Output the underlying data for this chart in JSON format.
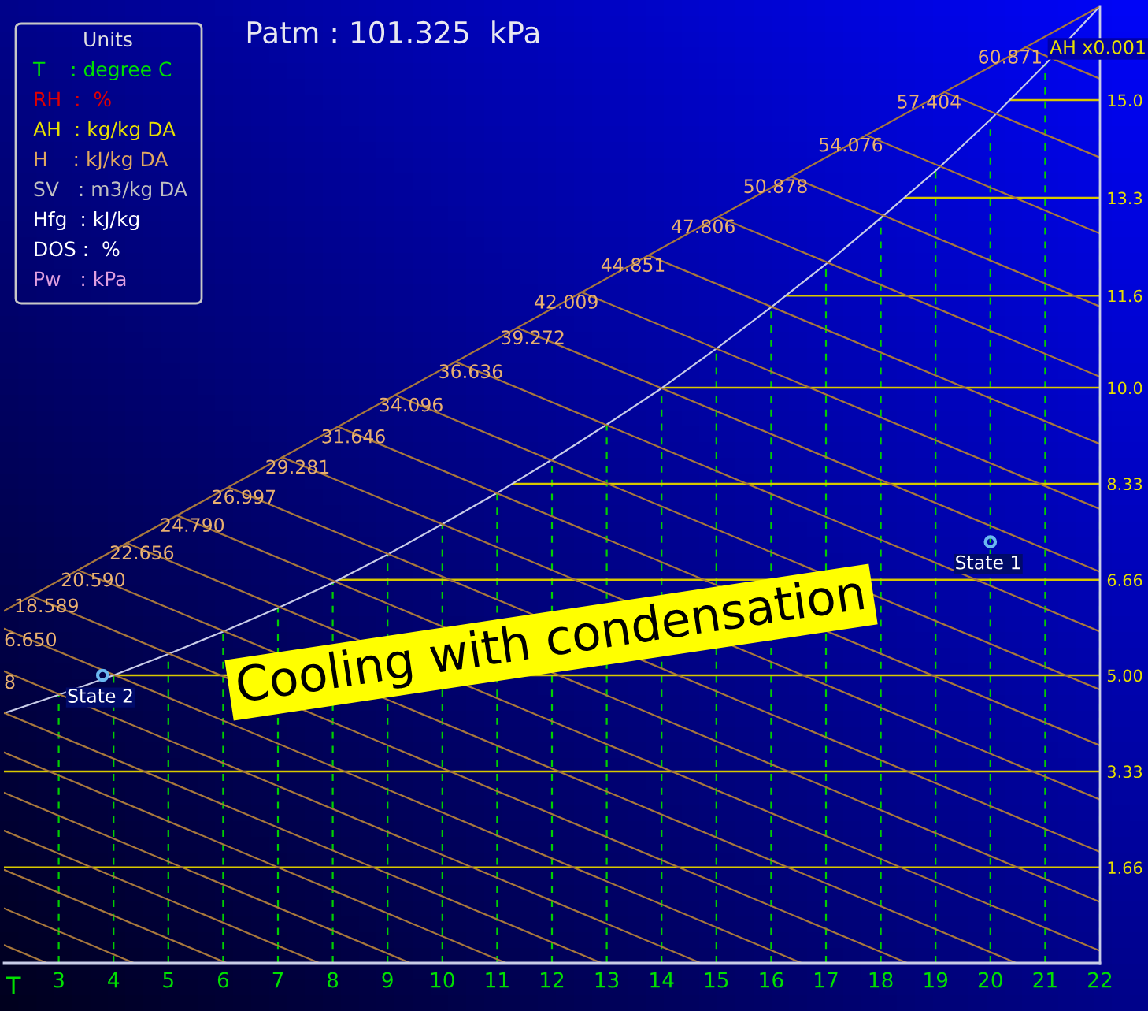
{
  "chart_data": {
    "type": "line",
    "title": "Patm : 101.325  kPa",
    "xlabel": "T",
    "ylabel": "AH x0.001",
    "xlim": [
      2,
      22
    ],
    "xticks": [
      3,
      4,
      5,
      6,
      7,
      8,
      9,
      10,
      11,
      12,
      13,
      14,
      15,
      16,
      17,
      18,
      19,
      20,
      21,
      22
    ],
    "ylim": [
      0,
      16.63
    ],
    "yticks": [
      1.66,
      3.33,
      {
        "value": 5.0,
        "label": "5.00"
      },
      6.66,
      8.33,
      {
        "value": 10.0,
        "label": "10.0"
      },
      11.6,
      13.3,
      {
        "value": 15.0,
        "label": "15.0"
      }
    ],
    "grid": true,
    "legend": false,
    "annotations": [
      "Units",
      "T    : degree C",
      "RH  :  %",
      "AH  : kg/kg DA",
      "H    : kJ/kg DA",
      "SV   : m3/kg DA",
      "Hfg  : kJ/kg",
      "DOS :  %",
      "Pw   : kPa",
      "Cooling with condensation"
    ],
    "series": [
      {
        "color": "#c8cce8",
        "x": [
          2,
          3,
          4,
          5,
          6,
          7,
          8,
          9,
          10,
          11,
          12,
          13,
          14,
          15,
          16,
          17,
          18,
          19,
          20,
          21,
          22
        ],
        "values": [
          4.34,
          4.66,
          5.0,
          5.37,
          5.76,
          6.17,
          6.61,
          7.1,
          7.63,
          8.17,
          8.75,
          9.36,
          9.99,
          10.68,
          11.4,
          12.15,
          12.95,
          13.77,
          14.66,
          15.62,
          16.63
        ]
      },
      {
        "type": "line",
        "color": "#a8783c",
        "x": [
          2,
          22
        ],
        "values": [
          6.12,
          16.63
        ]
      },
      {
        "type": "line",
        "color": "#a8783c",
        "x": [
          2,
          2.78
        ],
        "values": [
          0.31,
          0
        ]
      },
      {
        "type": "line",
        "color": "#a8783c",
        "x": [
          2,
          4.37
        ],
        "values": [
          0.95,
          0
        ]
      },
      {
        "type": "line",
        "color": "#a8783c",
        "x": [
          2,
          6.06
        ],
        "values": [
          1.62,
          0
        ]
      },
      {
        "type": "line",
        "color": "#a8783c",
        "x": [
          2,
          7.75
        ],
        "values": [
          2.3,
          0
        ]
      },
      {
        "type": "line",
        "color": "#a8783c",
        "x": [
          2,
          9.41
        ],
        "values": [
          2.96,
          0
        ]
      },
      {
        "type": "line",
        "color": "#a8783c",
        "x": [
          2,
          11.16
        ],
        "values": [
          3.66,
          0
        ]
      },
      {
        "type": "line",
        "color": "#a8783c",
        "x": [
          2,
          12.9
        ],
        "values": [
          4.35,
          0
        ]
      },
      {
        "type": "line",
        "color": "#a8783c",
        "name": "8",
        "x": [
          2,
          14.71
        ],
        "values": [
          5.07,
          0
        ]
      },
      {
        "type": "line",
        "color": "#a8783c",
        "name": "6.650",
        "x": [
          2,
          16.55
        ],
        "values": [
          5.81,
          0
        ]
      },
      {
        "type": "line",
        "color": "#a8783c",
        "name": "18.589",
        "x": [
          2.5,
          18.48
        ],
        "values": [
          6.38,
          0
        ]
      },
      {
        "type": "line",
        "color": "#a8783c",
        "name": "20.590",
        "x": [
          3.35,
          20.47
        ],
        "values": [
          6.83,
          0
        ]
      },
      {
        "type": "line",
        "color": "#a8783c",
        "name": "22.656",
        "x": [
          4.24,
          22
        ],
        "values": [
          7.3,
          0.21
        ]
      },
      {
        "type": "line",
        "color": "#a8783c",
        "name": "24.790",
        "x": [
          5.16,
          22
        ],
        "values": [
          7.78,
          1.06
        ]
      },
      {
        "type": "line",
        "color": "#a8783c",
        "name": "26.997",
        "x": [
          6.1,
          22
        ],
        "values": [
          8.27,
          1.93
        ]
      },
      {
        "type": "line",
        "color": "#a8783c",
        "name": "29.281",
        "x": [
          7.08,
          22
        ],
        "values": [
          8.79,
          2.84
        ]
      },
      {
        "type": "line",
        "color": "#a8783c",
        "name": "31.646",
        "x": [
          8.1,
          22
        ],
        "values": [
          9.32,
          3.78
        ]
      },
      {
        "type": "line",
        "color": "#a8783c",
        "name": "34.096",
        "x": [
          9.15,
          22
        ],
        "values": [
          9.87,
          4.75
        ]
      },
      {
        "type": "line",
        "color": "#a8783c",
        "name": "36.636",
        "x": [
          10.24,
          22
        ],
        "values": [
          10.45,
          5.76
        ]
      },
      {
        "type": "line",
        "color": "#a8783c",
        "name": "39.272",
        "x": [
          11.37,
          22
        ],
        "values": [
          11.04,
          6.8
        ]
      },
      {
        "type": "line",
        "color": "#a8783c",
        "name": "42.009",
        "x": [
          12.54,
          22
        ],
        "values": [
          11.66,
          7.89
        ]
      },
      {
        "type": "line",
        "color": "#a8783c",
        "name": "44.851",
        "x": [
          13.76,
          22
        ],
        "values": [
          12.3,
          9.02
        ]
      },
      {
        "type": "line",
        "color": "#a8783c",
        "name": "47.806",
        "x": [
          15.04,
          22
        ],
        "values": [
          12.97,
          10.19
        ]
      },
      {
        "type": "line",
        "color": "#a8783c",
        "name": "50.878",
        "x": [
          16.36,
          22
        ],
        "values": [
          13.67,
          11.41
        ]
      },
      {
        "type": "line",
        "color": "#a8783c",
        "name": "54.076",
        "x": [
          17.73,
          22
        ],
        "values": [
          14.39,
          12.68
        ]
      },
      {
        "type": "line",
        "color": "#a8783c",
        "name": "57.404",
        "x": [
          19.16,
          22
        ],
        "values": [
          15.14,
          14.0
        ]
      },
      {
        "type": "line",
        "color": "#a8783c",
        "name": "60.871",
        "x": [
          20.64,
          22
        ],
        "values": [
          15.92,
          15.37
        ]
      },
      {
        "type": "scatter",
        "marker": "circle",
        "color": "#6ab8f0",
        "name": "State 1",
        "x": [
          20
        ],
        "values": [
          7.32
        ]
      },
      {
        "type": "scatter",
        "marker": "circle",
        "color": "#6ab8f0",
        "name": "State 2",
        "x": [
          3.8
        ],
        "values": [
          5.0
        ]
      }
    ]
  }
}
